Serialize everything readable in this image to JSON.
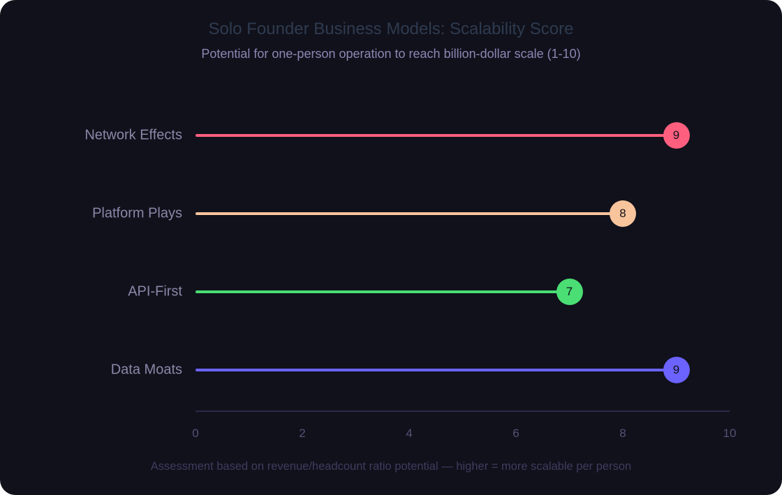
{
  "chart_data": {
    "type": "lollipop-bar",
    "orientation": "horizontal",
    "title": "Solo Founder Business Models: Scalability Score",
    "subtitle": "Potential for one-person operation to reach billion-dollar scale (1-10)",
    "footnote": "Assessment based on revenue/headcount ratio potential — higher = more scalable per person",
    "categories": [
      "Network Effects",
      "Platform Plays",
      "API-First",
      "Data Moats"
    ],
    "values": [
      9,
      8,
      7,
      9
    ],
    "value_labels": [
      "9",
      "8",
      "7",
      "9"
    ],
    "colors": [
      "#ff5f7e",
      "#f8c49c",
      "#4ade74",
      "#6c63ff"
    ],
    "xlabel": "",
    "ylabel": "",
    "xlim": [
      0,
      10
    ],
    "xticks": [
      "0",
      "2",
      "4",
      "6",
      "8",
      "10"
    ],
    "grid": false,
    "legend": null
  },
  "theme": {
    "background": "#10111b",
    "axis_color": "#2a2a48",
    "label_color": "#8a88a8"
  }
}
